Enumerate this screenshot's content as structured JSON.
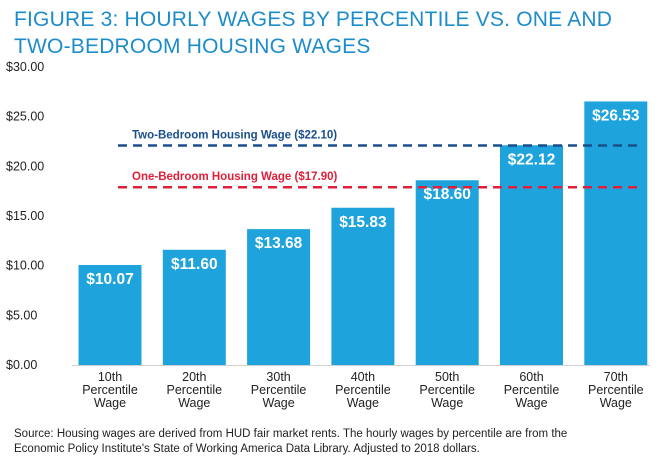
{
  "figure": {
    "title_line1": "FIGURE 3: HOURLY WAGES BY PERCENTILE VS. ONE AND",
    "title_line2": "TWO-BEDROOM HOUSING WAGES",
    "source_line1": "Source: Housing wages are derived from HUD fair market rents. The hourly wages by percentile are from the",
    "source_line2": "Economic Policy Institute's State of Working America Data Library. Adjusted to 2018 dollars."
  },
  "colors": {
    "bar": "#1fa3dc",
    "title": "#1d8ccb",
    "two_bedroom_line": "#1a4f8b",
    "one_bedroom_line": "#e0203a"
  },
  "chart_data": {
    "type": "bar",
    "categories": [
      [
        "10th",
        "Percentile",
        "Wage"
      ],
      [
        "20th",
        "Percentile",
        "Wage"
      ],
      [
        "30th",
        "Percentile",
        "Wage"
      ],
      [
        "40th",
        "Percentile",
        "Wage"
      ],
      [
        "50th",
        "Percentile",
        "Wage"
      ],
      [
        "60th",
        "Percentile",
        "Wage"
      ],
      [
        "70th",
        "Percentile",
        "Wage"
      ]
    ],
    "values": [
      10.07,
      11.6,
      13.68,
      15.83,
      18.6,
      22.12,
      26.53
    ],
    "value_labels": [
      "$10.07",
      "$11.60",
      "$13.68",
      "$15.83",
      "$18.60",
      "$22.12",
      "$26.53"
    ],
    "ylim": [
      0,
      30
    ],
    "yticks": [
      0,
      5,
      10,
      15,
      20,
      25,
      30
    ],
    "ytick_labels": [
      "$0.00",
      "$5.00",
      "$10.00",
      "$15.00",
      "$20.00",
      "$25.00",
      "$30.00"
    ],
    "reference_lines": [
      {
        "label": "Two-Bedroom Housing Wage ($22.10)",
        "value": 22.1,
        "style": "dashed",
        "color": "#1a4f8b"
      },
      {
        "label": "One-Bedroom Housing Wage ($17.90)",
        "value": 17.9,
        "style": "dashed",
        "color": "#e0203a"
      }
    ],
    "grid": false,
    "legend": "none"
  }
}
